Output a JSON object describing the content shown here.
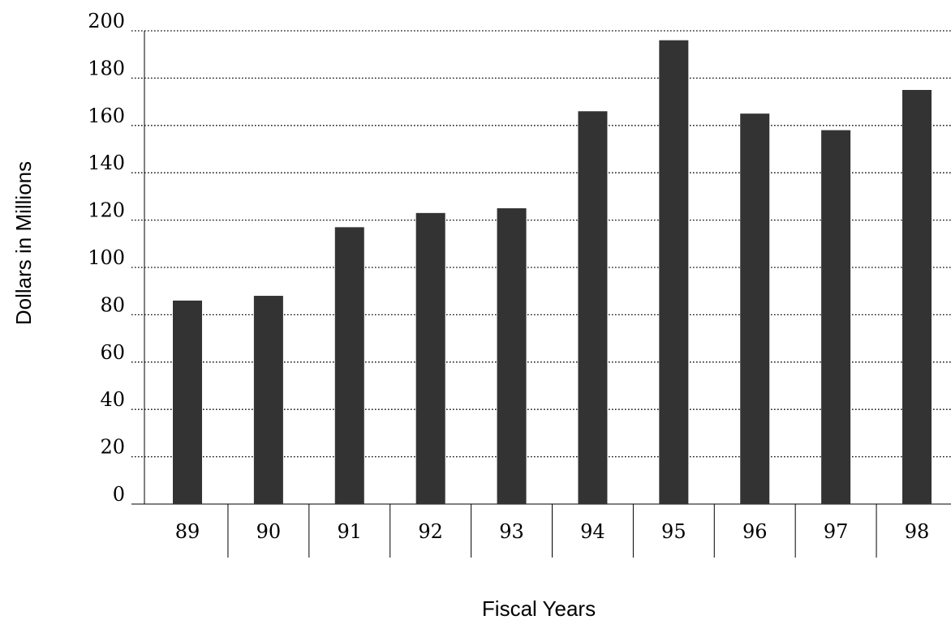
{
  "chart_data": {
    "type": "bar",
    "categories": [
      "89",
      "90",
      "91",
      "92",
      "93",
      "94",
      "95",
      "96",
      "97",
      "98"
    ],
    "values": [
      86,
      88,
      117,
      123,
      125,
      166,
      196,
      165,
      158,
      175
    ],
    "title": "",
    "xlabel": "Fiscal Years",
    "ylabel": "Dollars in Millions",
    "ylim": [
      0,
      200
    ],
    "yticks": [
      0,
      20,
      40,
      60,
      80,
      100,
      120,
      140,
      160,
      180,
      200
    ],
    "grid": true,
    "grid_style": "dotted",
    "bar_color": "#333333",
    "legend": "none"
  }
}
